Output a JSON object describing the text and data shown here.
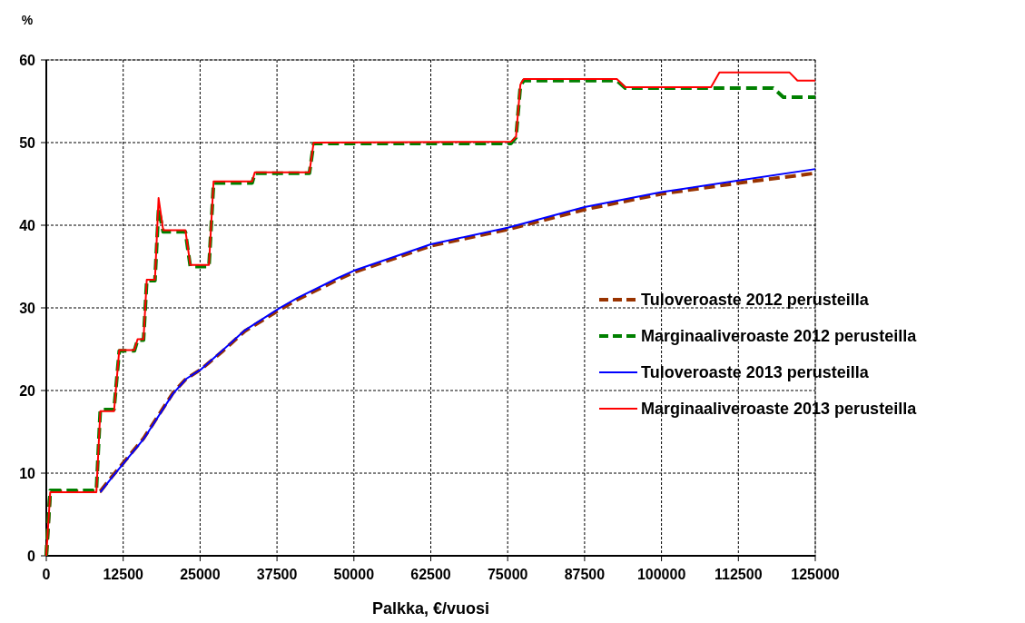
{
  "chart_data": {
    "type": "line",
    "ylabel": "%",
    "xlabel": "Palkka, €/vuosi",
    "xlim": [
      0,
      125000
    ],
    "xticks": [
      0,
      12500,
      25000,
      37500,
      50000,
      62500,
      75000,
      87500,
      100000,
      112500,
      125000
    ],
    "ylim": [
      0,
      60
    ],
    "yticks": [
      0,
      10,
      20,
      30,
      40,
      50,
      60
    ],
    "grid": true,
    "legend": "right",
    "marker": "none",
    "series": [
      {
        "name": "Tuloveroaste 2012 perusteilla",
        "color": "#993300",
        "line_style": "dashed",
        "x": [
          0,
          640,
          8780,
          11010,
          15800,
          20590,
          22720,
          25220,
          28570,
          32290,
          37770,
          40800,
          47350,
          50000,
          62500,
          75000,
          87500,
          100000,
          112500,
          125000
        ],
        "values": [
          0,
          7.8,
          7.8,
          9.9,
          14.2,
          19.7,
          21.4,
          22.6,
          24.7,
          27.2,
          29.7,
          31.0,
          33.4,
          34.3,
          37.5,
          39.5,
          41.9,
          43.8,
          45.1,
          46.3
        ]
      },
      {
        "name": "Marginaaliveroaste 2012 perusteilla",
        "color": "#008000",
        "line_style": "dashed",
        "x": [
          0,
          640,
          8140,
          8780,
          11010,
          11860,
          14310,
          14840,
          15800,
          16330,
          17660,
          18250,
          19000,
          22610,
          23410,
          26440,
          27190,
          33460,
          33890,
          42770,
          43460,
          75530,
          76350,
          77060,
          77600,
          92740,
          94110,
          118160,
          119800,
          125000
        ],
        "values": [
          0,
          7.9,
          7.9,
          17.7,
          17.7,
          24.8,
          24.8,
          26.1,
          26.1,
          33.3,
          33.3,
          42,
          39.2,
          39.2,
          35.0,
          35.0,
          45.1,
          45.1,
          46.3,
          46.3,
          49.9,
          49.9,
          50.6,
          56.8,
          57.5,
          57.5,
          56.6,
          56.6,
          55.5,
          55.5
        ]
      },
      {
        "name": "Tuloveroaste 2013 perusteilla",
        "color": "#0000ff",
        "line_style": "solid",
        "x": [
          8780,
          11010,
          15800,
          20590,
          22720,
          25220,
          28570,
          32290,
          37770,
          40800,
          47350,
          50000,
          62500,
          75000,
          87500,
          100000,
          112500,
          125000
        ],
        "values": [
          7.7,
          9.8,
          14.1,
          19.6,
          21.4,
          22.6,
          24.8,
          27.3,
          29.9,
          31.2,
          33.6,
          34.5,
          37.7,
          39.7,
          42.2,
          44.0,
          45.4,
          46.8
        ]
      },
      {
        "name": "Marginaaliveroaste 2013 perusteilla",
        "color": "#ff0000",
        "line_style": "solid",
        "x": [
          0,
          640,
          8140,
          8780,
          11010,
          11860,
          14310,
          14840,
          15800,
          16330,
          17660,
          18250,
          19000,
          22610,
          23410,
          26440,
          27190,
          33460,
          33890,
          42770,
          43460,
          75530,
          76350,
          77060,
          77600,
          92740,
          94110,
          108050,
          109420,
          120790,
          122100,
          125000
        ],
        "values": [
          0,
          7.7,
          7.7,
          17.5,
          17.5,
          24.9,
          24.9,
          26.2,
          26.2,
          33.4,
          33.4,
          43.3,
          39.4,
          39.4,
          35.2,
          35.2,
          45.3,
          45.3,
          46.4,
          46.4,
          50.0,
          50.1,
          50.7,
          57.0,
          57.7,
          57.7,
          56.7,
          56.7,
          58.5,
          58.5,
          57.5,
          57.5
        ]
      }
    ]
  }
}
